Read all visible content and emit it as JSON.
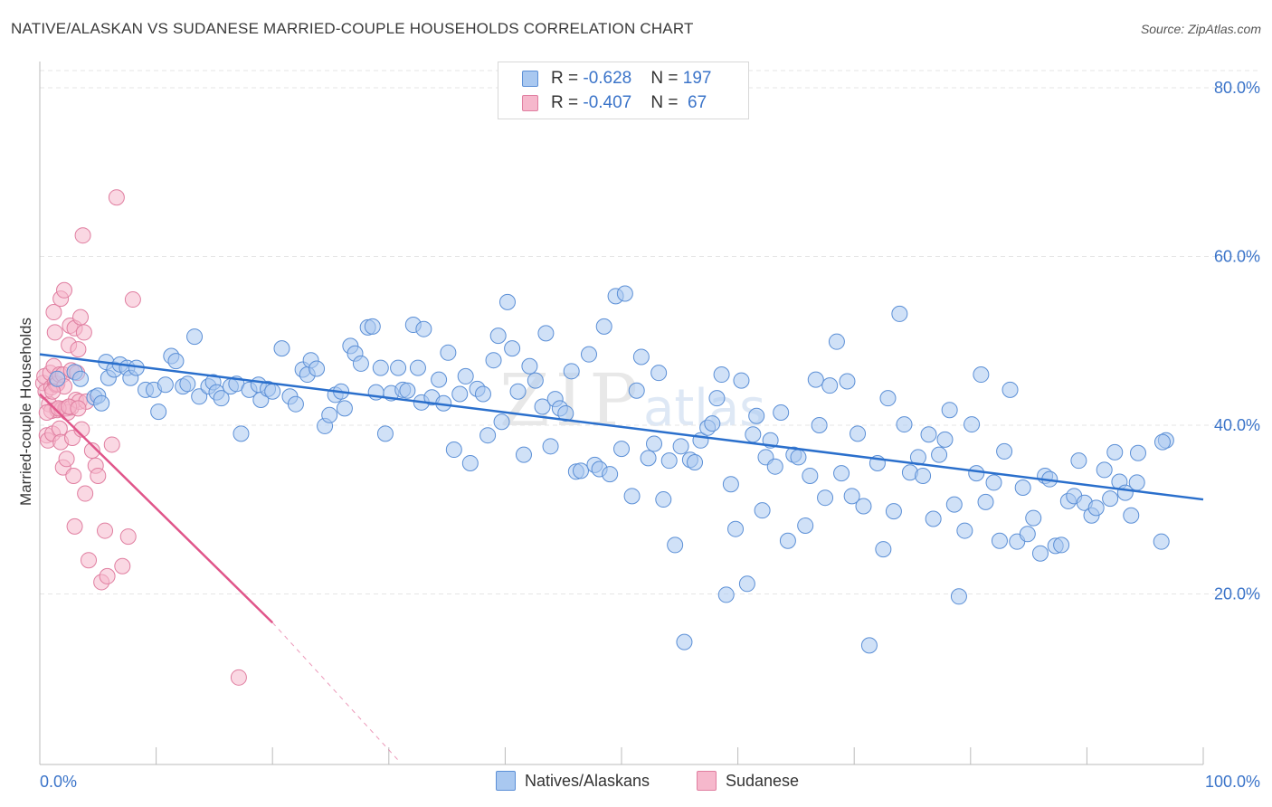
{
  "chart_data": {
    "type": "scatter",
    "title": "NATIVE/ALASKAN VS SUDANESE MARRIED-COUPLE HOUSEHOLDS CORRELATION CHART",
    "source": "Source: ZipAtlas.com",
    "xlabel": "",
    "ylabel": "Married-couple Households",
    "xlim": [
      0,
      100
    ],
    "ylim": [
      0,
      80
    ],
    "x_tick_labels": {
      "left": "0.0%",
      "right": "100.0%"
    },
    "y_ticks": [
      {
        "value": 80,
        "label": "80.0%"
      },
      {
        "value": 60,
        "label": "60.0%"
      },
      {
        "value": 40,
        "label": "40.0%"
      },
      {
        "value": 20,
        "label": "20.0%"
      }
    ],
    "watermark": {
      "main": "ZIP",
      "small": "atlas"
    },
    "legend": {
      "rows": [
        {
          "r_label": "R = ",
          "r_value": "-0.628",
          "n_label": "N = ",
          "n_value": "197"
        },
        {
          "r_label": "R = ",
          "r_value": "-0.407",
          "n_label": "N = ",
          "n_value": " 67"
        }
      ]
    },
    "colors": {
      "blue_fill": "#a9c8f0",
      "blue_stroke": "#5b8fd6",
      "blue_line": "#2a6fcc",
      "pink_fill": "#f6b8cc",
      "pink_stroke": "#e07ea0",
      "pink_line": "#e0558a",
      "grid": "#e6e6e6"
    },
    "series": [
      {
        "name": "Natives/Alaskans",
        "trend": {
          "x0": 0,
          "y0": 48.4,
          "x1": 100,
          "y1": 31.2
        },
        "points": [
          [
            1.5,
            45.5
          ],
          [
            3.0,
            46.3
          ],
          [
            3.5,
            45.5
          ],
          [
            4.7,
            43.3
          ],
          [
            5.0,
            43.5
          ],
          [
            5.3,
            42.6
          ],
          [
            5.7,
            47.5
          ],
          [
            5.9,
            45.6
          ],
          [
            6.4,
            46.6
          ],
          [
            6.9,
            47.2
          ],
          [
            7.5,
            46.8
          ],
          [
            7.8,
            45.6
          ],
          [
            8.3,
            46.8
          ],
          [
            9.1,
            44.2
          ],
          [
            9.8,
            44.2
          ],
          [
            10.2,
            41.6
          ],
          [
            10.8,
            44.8
          ],
          [
            11.3,
            48.2
          ],
          [
            11.7,
            47.6
          ],
          [
            12.3,
            44.6
          ],
          [
            12.7,
            44.9
          ],
          [
            13.3,
            50.5
          ],
          [
            13.7,
            43.4
          ],
          [
            14.5,
            44.6
          ],
          [
            14.9,
            45.1
          ],
          [
            15.2,
            43.9
          ],
          [
            15.6,
            43.2
          ],
          [
            16.4,
            44.6
          ],
          [
            16.9,
            44.9
          ],
          [
            17.3,
            39.0
          ],
          [
            18.0,
            44.2
          ],
          [
            18.8,
            44.8
          ],
          [
            19.0,
            43.0
          ],
          [
            19.6,
            44.3
          ],
          [
            20.0,
            44.0
          ],
          [
            20.8,
            49.1
          ],
          [
            21.5,
            43.4
          ],
          [
            22.0,
            42.5
          ],
          [
            22.6,
            46.6
          ],
          [
            23.0,
            46.0
          ],
          [
            23.3,
            47.7
          ],
          [
            23.8,
            46.7
          ],
          [
            24.5,
            39.9
          ],
          [
            24.9,
            41.2
          ],
          [
            25.4,
            43.6
          ],
          [
            25.9,
            44.0
          ],
          [
            26.2,
            42.0
          ],
          [
            26.7,
            49.4
          ],
          [
            27.1,
            48.5
          ],
          [
            27.6,
            47.3
          ],
          [
            28.2,
            51.6
          ],
          [
            28.6,
            51.7
          ],
          [
            28.9,
            43.9
          ],
          [
            29.3,
            46.8
          ],
          [
            29.7,
            39.0
          ],
          [
            30.2,
            43.8
          ],
          [
            30.8,
            46.8
          ],
          [
            31.2,
            44.2
          ],
          [
            31.6,
            44.1
          ],
          [
            32.1,
            51.9
          ],
          [
            32.5,
            46.8
          ],
          [
            32.8,
            42.7
          ],
          [
            33.0,
            51.4
          ],
          [
            33.7,
            43.3
          ],
          [
            34.3,
            45.4
          ],
          [
            34.7,
            42.6
          ],
          [
            35.1,
            48.6
          ],
          [
            35.6,
            37.1
          ],
          [
            36.1,
            43.7
          ],
          [
            36.6,
            45.8
          ],
          [
            37.0,
            35.5
          ],
          [
            37.6,
            44.3
          ],
          [
            38.1,
            43.7
          ],
          [
            38.5,
            38.8
          ],
          [
            39.0,
            47.7
          ],
          [
            39.4,
            50.6
          ],
          [
            39.7,
            40.4
          ],
          [
            40.2,
            54.6
          ],
          [
            40.6,
            49.1
          ],
          [
            41.1,
            44.0
          ],
          [
            41.6,
            36.5
          ],
          [
            42.1,
            47.0
          ],
          [
            42.6,
            45.3
          ],
          [
            43.2,
            42.2
          ],
          [
            43.5,
            50.9
          ],
          [
            43.9,
            37.5
          ],
          [
            44.3,
            43.1
          ],
          [
            44.7,
            42.0
          ],
          [
            45.2,
            41.4
          ],
          [
            45.7,
            46.4
          ],
          [
            46.1,
            34.5
          ],
          [
            46.5,
            34.6
          ],
          [
            47.2,
            48.4
          ],
          [
            47.7,
            35.3
          ],
          [
            48.1,
            34.8
          ],
          [
            48.5,
            51.7
          ],
          [
            49.0,
            34.2
          ],
          [
            49.5,
            55.3
          ],
          [
            50.0,
            37.2
          ],
          [
            50.3,
            55.6
          ],
          [
            50.9,
            31.6
          ],
          [
            51.3,
            44.1
          ],
          [
            51.7,
            48.1
          ],
          [
            52.3,
            36.1
          ],
          [
            52.8,
            37.8
          ],
          [
            53.2,
            46.2
          ],
          [
            53.6,
            31.2
          ],
          [
            54.1,
            35.8
          ],
          [
            54.6,
            25.8
          ],
          [
            55.1,
            37.5
          ],
          [
            55.4,
            14.3
          ],
          [
            55.9,
            35.9
          ],
          [
            56.3,
            35.6
          ],
          [
            56.8,
            38.2
          ],
          [
            57.4,
            39.7
          ],
          [
            57.8,
            40.2
          ],
          [
            58.2,
            43.2
          ],
          [
            58.6,
            46.0
          ],
          [
            59.0,
            19.9
          ],
          [
            59.4,
            33.0
          ],
          [
            59.8,
            27.7
          ],
          [
            60.3,
            45.3
          ],
          [
            60.8,
            21.2
          ],
          [
            61.3,
            38.9
          ],
          [
            61.6,
            41.1
          ],
          [
            62.1,
            29.9
          ],
          [
            62.4,
            36.2
          ],
          [
            62.8,
            38.2
          ],
          [
            63.2,
            35.1
          ],
          [
            63.7,
            41.5
          ],
          [
            64.3,
            26.3
          ],
          [
            64.8,
            36.5
          ],
          [
            65.2,
            36.2
          ],
          [
            65.8,
            28.1
          ],
          [
            66.2,
            34.0
          ],
          [
            66.7,
            45.4
          ],
          [
            67.0,
            40.0
          ],
          [
            67.5,
            31.4
          ],
          [
            67.9,
            44.7
          ],
          [
            68.5,
            49.9
          ],
          [
            68.9,
            34.3
          ],
          [
            69.4,
            45.2
          ],
          [
            69.8,
            31.6
          ],
          [
            70.3,
            39.0
          ],
          [
            70.8,
            30.4
          ],
          [
            71.3,
            13.9
          ],
          [
            72.0,
            35.5
          ],
          [
            72.5,
            25.3
          ],
          [
            72.9,
            43.2
          ],
          [
            73.4,
            29.8
          ],
          [
            73.9,
            53.2
          ],
          [
            74.3,
            40.1
          ],
          [
            74.8,
            34.4
          ],
          [
            75.5,
            36.2
          ],
          [
            75.9,
            34.0
          ],
          [
            76.4,
            38.9
          ],
          [
            76.8,
            28.9
          ],
          [
            77.3,
            36.5
          ],
          [
            77.8,
            38.3
          ],
          [
            78.2,
            41.8
          ],
          [
            78.6,
            30.6
          ],
          [
            79.0,
            19.7
          ],
          [
            79.5,
            27.5
          ],
          [
            80.1,
            40.1
          ],
          [
            80.5,
            34.3
          ],
          [
            80.9,
            46.0
          ],
          [
            81.3,
            30.9
          ],
          [
            82.0,
            33.2
          ],
          [
            82.5,
            26.3
          ],
          [
            82.9,
            36.9
          ],
          [
            83.4,
            44.2
          ],
          [
            84.0,
            26.2
          ],
          [
            84.5,
            32.6
          ],
          [
            84.9,
            27.1
          ],
          [
            85.4,
            29.0
          ],
          [
            86.0,
            24.8
          ],
          [
            86.4,
            34.0
          ],
          [
            86.8,
            33.6
          ],
          [
            87.3,
            25.7
          ],
          [
            87.8,
            25.8
          ],
          [
            88.4,
            31.0
          ],
          [
            88.9,
            31.6
          ],
          [
            89.3,
            35.8
          ],
          [
            89.8,
            30.8
          ],
          [
            90.4,
            29.3
          ],
          [
            90.8,
            30.2
          ],
          [
            91.5,
            34.7
          ],
          [
            92.0,
            31.3
          ],
          [
            92.4,
            36.8
          ],
          [
            92.8,
            33.3
          ],
          [
            93.3,
            32.0
          ],
          [
            93.8,
            29.3
          ],
          [
            94.3,
            33.2
          ],
          [
            96.4,
            26.2
          ],
          [
            96.8,
            38.2
          ],
          [
            96.5,
            38.0
          ],
          [
            94.4,
            36.7
          ]
        ]
      },
      {
        "name": "Sudanese",
        "trend": {
          "x0": 0,
          "y0": 43.7,
          "x1": 20,
          "y1": 16.6
        },
        "trend_dashed": {
          "x0": 20,
          "y0": 16.6,
          "x1": 31,
          "y1": 0
        },
        "points": [
          [
            0.3,
            45.0
          ],
          [
            0.4,
            45.8
          ],
          [
            0.5,
            44.0
          ],
          [
            0.6,
            38.8
          ],
          [
            0.7,
            38.2
          ],
          [
            0.8,
            42.5
          ],
          [
            0.9,
            46.2
          ],
          [
            1.0,
            44.5
          ],
          [
            1.0,
            41.7
          ],
          [
            1.1,
            39.0
          ],
          [
            1.2,
            53.4
          ],
          [
            1.2,
            47.0
          ],
          [
            1.3,
            45.0
          ],
          [
            1.3,
            51.0
          ],
          [
            1.4,
            44.8
          ],
          [
            1.5,
            44.9
          ],
          [
            1.5,
            41.8
          ],
          [
            1.6,
            42.0
          ],
          [
            1.7,
            46.0
          ],
          [
            1.7,
            39.6
          ],
          [
            1.8,
            38.0
          ],
          [
            1.8,
            55.0
          ],
          [
            1.9,
            41.9
          ],
          [
            2.0,
            46.0
          ],
          [
            2.0,
            35.0
          ],
          [
            2.1,
            56.0
          ],
          [
            2.1,
            44.6
          ],
          [
            2.2,
            42.0
          ],
          [
            2.3,
            42.0
          ],
          [
            2.3,
            36.0
          ],
          [
            2.4,
            41.5
          ],
          [
            2.5,
            49.5
          ],
          [
            2.6,
            51.8
          ],
          [
            2.7,
            46.5
          ],
          [
            2.7,
            42.1
          ],
          [
            2.8,
            38.5
          ],
          [
            2.9,
            34.0
          ],
          [
            3.0,
            51.5
          ],
          [
            3.0,
            28.0
          ],
          [
            3.1,
            43.0
          ],
          [
            3.2,
            46.2
          ],
          [
            3.3,
            49.0
          ],
          [
            3.4,
            42.8
          ],
          [
            3.5,
            52.8
          ],
          [
            3.6,
            39.5
          ],
          [
            3.7,
            62.5
          ],
          [
            3.8,
            51.0
          ],
          [
            3.9,
            31.9
          ],
          [
            4.0,
            42.8
          ],
          [
            4.2,
            24.0
          ],
          [
            4.5,
            37.0
          ],
          [
            4.8,
            35.2
          ],
          [
            5.0,
            34.0
          ],
          [
            5.3,
            21.4
          ],
          [
            5.6,
            27.5
          ],
          [
            5.8,
            22.1
          ],
          [
            6.2,
            37.7
          ],
          [
            6.6,
            67.0
          ],
          [
            7.1,
            23.3
          ],
          [
            7.6,
            26.8
          ],
          [
            8.0,
            54.9
          ],
          [
            17.1,
            10.1
          ],
          [
            0.6,
            41.5
          ],
          [
            1.1,
            44.0
          ],
          [
            1.6,
            42.0
          ],
          [
            2.5,
            42.2
          ],
          [
            3.3,
            42.0
          ]
        ]
      }
    ]
  }
}
